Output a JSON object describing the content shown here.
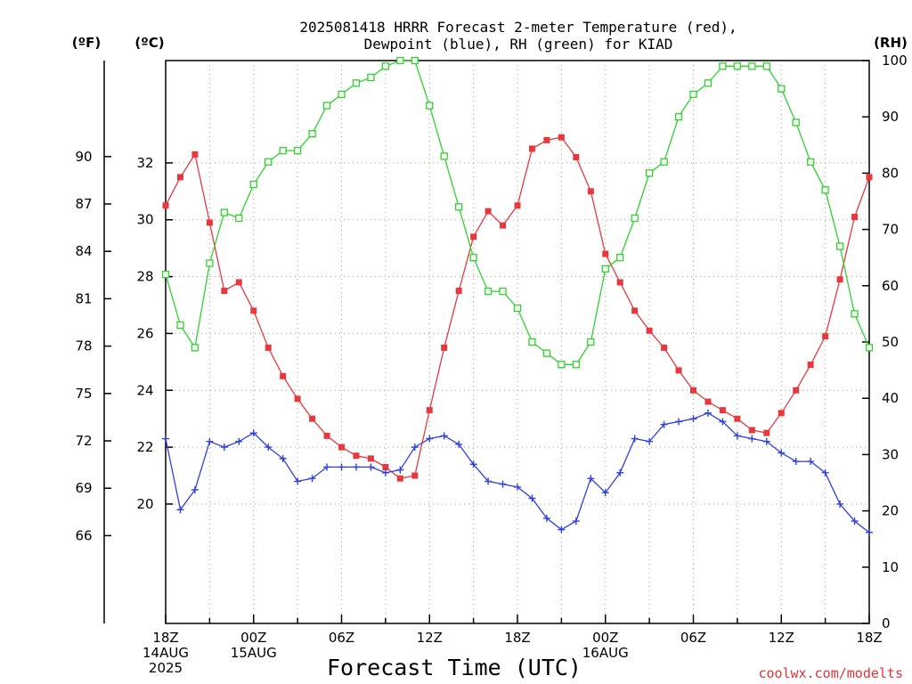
{
  "chart_data": {
    "type": "line",
    "title": [
      "2025081418 HRRR Forecast 2-meter Temperature (red),",
      "Dewpoint (blue), RH (green) for KIAD"
    ],
    "xlabel": "Forecast Time (UTC)",
    "credit": "coolwx.com/modelts",
    "units": {
      "fahrenheit": "(ºF)",
      "celsius": "(ºC)",
      "rh": "(RH)"
    },
    "x_hours": [
      0,
      1,
      2,
      3,
      4,
      5,
      6,
      7,
      8,
      9,
      10,
      11,
      12,
      13,
      14,
      15,
      16,
      17,
      18,
      19,
      20,
      21,
      22,
      23,
      24,
      25,
      26,
      27,
      28,
      29,
      30,
      31,
      32,
      33,
      34,
      35,
      36,
      37,
      38,
      39,
      40,
      41,
      42,
      43,
      44,
      45,
      46,
      47,
      48
    ],
    "x_range_hours": [
      0,
      48
    ],
    "x_ticks": [
      {
        "hour": 0,
        "lines": [
          "18Z",
          "14AUG",
          "2025"
        ]
      },
      {
        "hour": 6,
        "lines": [
          "00Z",
          "15AUG"
        ]
      },
      {
        "hour": 12,
        "lines": [
          "06Z"
        ]
      },
      {
        "hour": 18,
        "lines": [
          "12Z"
        ]
      },
      {
        "hour": 24,
        "lines": [
          "18Z"
        ]
      },
      {
        "hour": 30,
        "lines": [
          "00Z",
          "16AUG"
        ]
      },
      {
        "hour": 36,
        "lines": [
          "06Z"
        ]
      },
      {
        "hour": 42,
        "lines": [
          "12Z"
        ]
      },
      {
        "hour": 48,
        "lines": [
          "18Z"
        ]
      }
    ],
    "celsius_axis": {
      "range": [
        15.8,
        35.6
      ],
      "ticks": [
        20,
        22,
        24,
        26,
        28,
        30,
        32
      ]
    },
    "fahrenheit_axis": {
      "range": [
        60.44,
        96.08
      ],
      "ticks": [
        66,
        69,
        72,
        75,
        78,
        81,
        84,
        87,
        90
      ]
    },
    "rh_axis": {
      "range": [
        0,
        100
      ],
      "ticks": [
        0,
        10,
        20,
        30,
        40,
        50,
        60,
        70,
        80,
        90,
        100
      ]
    },
    "grid": true,
    "series": [
      {
        "name": "Temperature",
        "axis": "celsius",
        "color": "#e8383d",
        "marker": "filled-square",
        "values": [
          30.5,
          31.5,
          32.3,
          29.9,
          27.5,
          27.8,
          26.8,
          25.5,
          24.5,
          23.7,
          23.0,
          22.4,
          22.0,
          21.7,
          21.6,
          21.3,
          20.9,
          21.0,
          23.3,
          25.5,
          27.5,
          29.4,
          30.3,
          29.8,
          30.5,
          32.5,
          32.8,
          32.9,
          32.2,
          31.0,
          28.8,
          27.8,
          26.8,
          26.1,
          25.5,
          24.7,
          24.0,
          23.6,
          23.3,
          23.0,
          22.6,
          22.5,
          23.2,
          24.0,
          24.9,
          25.9,
          27.9,
          30.1,
          31.5
        ]
      },
      {
        "name": "Dewpoint",
        "axis": "celsius",
        "color": "#2f3fe0",
        "marker": "plus",
        "values": [
          22.3,
          19.8,
          20.5,
          22.2,
          22.0,
          22.2,
          22.5,
          22.0,
          21.6,
          20.8,
          20.9,
          21.3,
          21.3,
          21.3,
          21.3,
          21.1,
          21.2,
          22.0,
          22.3,
          22.4,
          22.1,
          21.4,
          20.8,
          20.7,
          20.6,
          20.2,
          19.5,
          19.1,
          19.4,
          20.9,
          20.4,
          21.1,
          22.3,
          22.2,
          22.8,
          22.9,
          23.0,
          23.2,
          22.9,
          22.4,
          22.3,
          22.2,
          21.8,
          21.5,
          21.5,
          21.1,
          20.0,
          19.4,
          19.0
        ]
      },
      {
        "name": "RH",
        "axis": "rh",
        "color": "#2ed32e",
        "marker": "open-square",
        "values": [
          62,
          53,
          49,
          64,
          73,
          72,
          78,
          82,
          84,
          84,
          87,
          92,
          94,
          96,
          97,
          99,
          100,
          100,
          92,
          83,
          74,
          65,
          59,
          59,
          56,
          50,
          48,
          46,
          46,
          50,
          63,
          65,
          72,
          80,
          82,
          90,
          94,
          96,
          99,
          99,
          99,
          99,
          95,
          89,
          82,
          77,
          67,
          55,
          49
        ]
      }
    ]
  }
}
